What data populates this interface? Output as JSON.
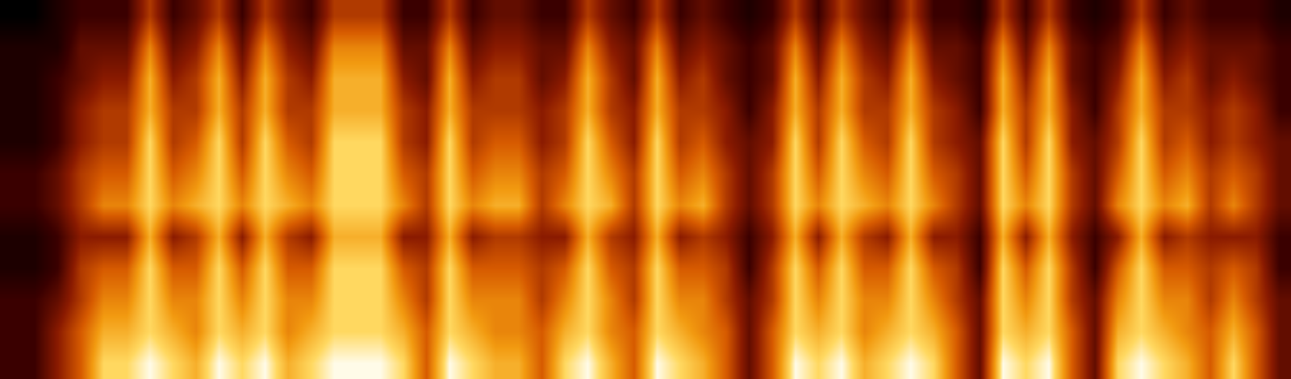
{
  "chart_data": {
    "type": "heatmap",
    "tick_labels": false,
    "grid": false,
    "zlim": [
      0,
      10
    ],
    "cells": [
      [
        2,
        2,
        4,
        6,
        9,
        9,
        10,
        9,
        8,
        10,
        9,
        10,
        8,
        9,
        10,
        10,
        10,
        9,
        6,
        10,
        9,
        8,
        8,
        6,
        9,
        10,
        8,
        6,
        10,
        9,
        8,
        6,
        3,
        6,
        10,
        9,
        10,
        8,
        9,
        10,
        9,
        6,
        3,
        10,
        9,
        10,
        6,
        3,
        9,
        10,
        9,
        8,
        6,
        9,
        6,
        3
      ],
      [
        2,
        2,
        4,
        6,
        8,
        8,
        9,
        8,
        7,
        9,
        8,
        9,
        7,
        8,
        9,
        9,
        9,
        8,
        6,
        9,
        8,
        7,
        7,
        6,
        8,
        9,
        7,
        6,
        9,
        8,
        7,
        6,
        3,
        6,
        9,
        8,
        9,
        7,
        8,
        9,
        8,
        6,
        3,
        9,
        8,
        9,
        6,
        3,
        8,
        9,
        8,
        7,
        6,
        8,
        6,
        3
      ],
      [
        2,
        2,
        3,
        5,
        7,
        7,
        9,
        7,
        7,
        9,
        7,
        9,
        7,
        7,
        9,
        9,
        9,
        7,
        5,
        9,
        7,
        7,
        7,
        5,
        7,
        9,
        7,
        5,
        9,
        7,
        7,
        5,
        3,
        5,
        9,
        7,
        9,
        7,
        7,
        9,
        7,
        5,
        3,
        9,
        7,
        9,
        5,
        3,
        7,
        9,
        7,
        7,
        5,
        7,
        5,
        3
      ],
      [
        1,
        1,
        2,
        5,
        6,
        6,
        9,
        6,
        6,
        9,
        6,
        9,
        6,
        6,
        9,
        9,
        9,
        6,
        5,
        9,
        6,
        6,
        6,
        5,
        6,
        9,
        6,
        5,
        9,
        6,
        6,
        5,
        2,
        5,
        9,
        6,
        9,
        6,
        6,
        9,
        6,
        5,
        2,
        9,
        6,
        9,
        5,
        2,
        6,
        9,
        6,
        6,
        5,
        6,
        5,
        2
      ],
      [
        1,
        1,
        2,
        4,
        4,
        4,
        8,
        4,
        5,
        8,
        4,
        8,
        5,
        4,
        8,
        8,
        8,
        4,
        4,
        8,
        4,
        5,
        5,
        4,
        4,
        8,
        5,
        4,
        8,
        4,
        5,
        4,
        2,
        4,
        8,
        4,
        8,
        5,
        4,
        8,
        4,
        4,
        2,
        8,
        4,
        8,
        4,
        2,
        4,
        8,
        4,
        5,
        4,
        4,
        4,
        2
      ],
      [
        2,
        2,
        3,
        5,
        7,
        7,
        9,
        7,
        8,
        9,
        7,
        9,
        8,
        7,
        9,
        9,
        9,
        7,
        5,
        9,
        7,
        8,
        8,
        5,
        7,
        9,
        8,
        5,
        9,
        7,
        8,
        5,
        3,
        5,
        9,
        7,
        9,
        8,
        7,
        9,
        7,
        5,
        3,
        9,
        7,
        9,
        5,
        3,
        7,
        9,
        7,
        8,
        5,
        7,
        5,
        3
      ],
      [
        2,
        2,
        3,
        5,
        6,
        6,
        9,
        6,
        7,
        9,
        6,
        9,
        7,
        6,
        9,
        9,
        9,
        6,
        5,
        9,
        6,
        7,
        7,
        5,
        6,
        9,
        7,
        5,
        9,
        6,
        7,
        5,
        3,
        5,
        9,
        6,
        9,
        7,
        6,
        9,
        6,
        5,
        3,
        9,
        6,
        9,
        5,
        3,
        6,
        9,
        6,
        7,
        5,
        6,
        5,
        3
      ],
      [
        1,
        1,
        2,
        4,
        5,
        5,
        9,
        5,
        6,
        9,
        5,
        9,
        6,
        5,
        9,
        9,
        9,
        5,
        4,
        9,
        5,
        6,
        6,
        4,
        5,
        9,
        6,
        4,
        9,
        5,
        6,
        4,
        3,
        4,
        9,
        5,
        9,
        6,
        5,
        9,
        5,
        4,
        3,
        9,
        5,
        9,
        4,
        3,
        5,
        9,
        5,
        6,
        4,
        5,
        4,
        3
      ],
      [
        1,
        1,
        2,
        4,
        5,
        5,
        8,
        5,
        5,
        8,
        5,
        8,
        5,
        5,
        8,
        8,
        8,
        5,
        4,
        8,
        5,
        5,
        5,
        4,
        5,
        8,
        5,
        4,
        8,
        5,
        5,
        4,
        2,
        4,
        8,
        5,
        8,
        5,
        5,
        8,
        5,
        4,
        2,
        8,
        5,
        8,
        4,
        2,
        5,
        8,
        5,
        5,
        4,
        5,
        4,
        2
      ],
      [
        1,
        1,
        2,
        3,
        4,
        4,
        8,
        4,
        5,
        8,
        4,
        8,
        5,
        4,
        8,
        8,
        8,
        4,
        3,
        8,
        4,
        5,
        5,
        3,
        4,
        8,
        5,
        3,
        8,
        4,
        5,
        3,
        2,
        3,
        8,
        4,
        8,
        5,
        4,
        8,
        4,
        3,
        2,
        8,
        4,
        8,
        3,
        2,
        4,
        8,
        4,
        5,
        3,
        4,
        3,
        2
      ],
      [
        1,
        1,
        1,
        3,
        3,
        3,
        7,
        3,
        4,
        7,
        3,
        7,
        4,
        3,
        7,
        7,
        7,
        3,
        3,
        7,
        3,
        4,
        4,
        3,
        3,
        7,
        4,
        3,
        7,
        3,
        4,
        3,
        2,
        3,
        7,
        3,
        7,
        4,
        3,
        7,
        3,
        3,
        2,
        7,
        3,
        7,
        3,
        2,
        3,
        7,
        3,
        4,
        3,
        3,
        3,
        2
      ],
      [
        0,
        0,
        1,
        2,
        2,
        2,
        5,
        2,
        3,
        5,
        2,
        5,
        3,
        2,
        5,
        5,
        5,
        2,
        2,
        5,
        2,
        3,
        3,
        2,
        2,
        5,
        3,
        2,
        5,
        2,
        3,
        2,
        1,
        2,
        5,
        2,
        5,
        3,
        2,
        5,
        2,
        2,
        1,
        5,
        2,
        5,
        2,
        1,
        2,
        5,
        2,
        3,
        2,
        2,
        2,
        1
      ]
    ]
  }
}
